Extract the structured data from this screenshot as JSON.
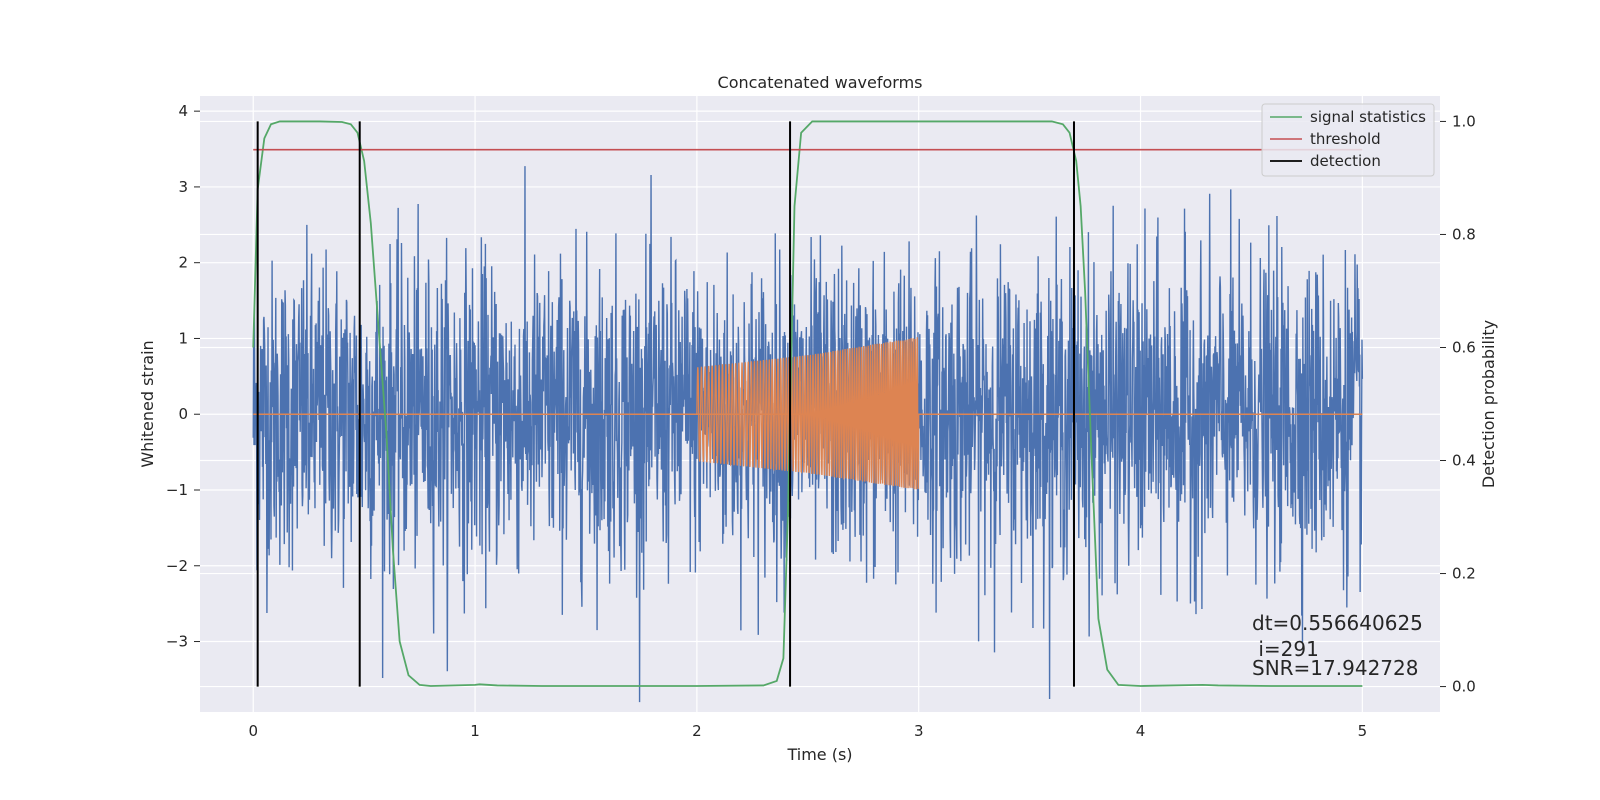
{
  "chart_data": {
    "type": "line",
    "title": "Concatenated waveforms",
    "xlabel": "Time (s)",
    "ylabel": "Whitened strain",
    "y2label": "Detection probability",
    "xlim": [
      -0.24,
      5.35
    ],
    "ylim": [
      -3.93,
      4.2
    ],
    "y2lim": [
      -0.045,
      1.045
    ],
    "xticks": [
      0,
      1,
      2,
      3,
      4,
      5
    ],
    "xtick_labels": [
      "0",
      "1",
      "2",
      "3",
      "4",
      "5"
    ],
    "yticks": [
      -3,
      -2,
      -1,
      0,
      1,
      2,
      3,
      4
    ],
    "ytick_labels": [
      "−3",
      "−2",
      "−1",
      "0",
      "1",
      "2",
      "3",
      "4"
    ],
    "y2ticks": [
      0.0,
      0.2,
      0.4,
      0.6,
      0.8,
      1.0
    ],
    "y2tick_labels": [
      "0.0",
      "0.2",
      "0.4",
      "0.6",
      "0.8",
      "1.0"
    ],
    "grid": true,
    "legend_position": "top-right",
    "colors": {
      "background": "#eaeaf2",
      "grid": "#ffffff",
      "strain": "#4c72b0",
      "template": "#dd8452",
      "signal_statistics": "#55a868",
      "threshold": "#c44e52",
      "detection": "#000000"
    },
    "series": [
      {
        "name": "",
        "axis": "left",
        "kind": "noise",
        "x_range": [
          0,
          5
        ],
        "amplitude_sigma": 1.0,
        "max_abs": 3.8
      },
      {
        "name": "",
        "axis": "left",
        "kind": "chirp",
        "x_range": [
          2,
          3
        ],
        "baseline_x_range": [
          0,
          5
        ],
        "baseline_value": 0,
        "envelope": [
          [
            2.0,
            0.62
          ],
          [
            2.5,
            0.78
          ],
          [
            3.0,
            1.02
          ]
        ],
        "envelope_lower": [
          [
            2.0,
            -0.62
          ],
          [
            2.5,
            -0.78
          ],
          [
            3.0,
            -1.0
          ]
        ]
      },
      {
        "name": "signal statistics",
        "axis": "right",
        "points": [
          [
            0.0,
            0.6
          ],
          [
            0.02,
            0.88
          ],
          [
            0.05,
            0.97
          ],
          [
            0.08,
            0.995
          ],
          [
            0.12,
            1.0
          ],
          [
            0.3,
            1.0
          ],
          [
            0.4,
            0.999
          ],
          [
            0.44,
            0.995
          ],
          [
            0.47,
            0.98
          ],
          [
            0.5,
            0.93
          ],
          [
            0.53,
            0.82
          ],
          [
            0.56,
            0.66
          ],
          [
            0.6,
            0.45
          ],
          [
            0.63,
            0.24
          ],
          [
            0.66,
            0.08
          ],
          [
            0.7,
            0.02
          ],
          [
            0.75,
            0.003
          ],
          [
            0.8,
            0.001
          ],
          [
            1.0,
            0.003
          ],
          [
            1.02,
            0.004
          ],
          [
            1.1,
            0.002
          ],
          [
            1.3,
            0.001
          ],
          [
            2.0,
            0.001
          ],
          [
            2.3,
            0.002
          ],
          [
            2.36,
            0.01
          ],
          [
            2.39,
            0.05
          ],
          [
            2.41,
            0.3
          ],
          [
            2.44,
            0.85
          ],
          [
            2.47,
            0.98
          ],
          [
            2.52,
            1.0
          ],
          [
            3.6,
            1.0
          ],
          [
            3.65,
            0.995
          ],
          [
            3.68,
            0.98
          ],
          [
            3.71,
            0.93
          ],
          [
            3.73,
            0.85
          ],
          [
            3.75,
            0.7
          ],
          [
            3.78,
            0.4
          ],
          [
            3.81,
            0.12
          ],
          [
            3.85,
            0.03
          ],
          [
            3.9,
            0.003
          ],
          [
            4.0,
            0.001
          ],
          [
            4.28,
            0.003
          ],
          [
            4.35,
            0.002
          ],
          [
            4.6,
            0.001
          ],
          [
            5.0,
            0.001
          ]
        ]
      },
      {
        "name": "threshold",
        "axis": "right",
        "points": [
          [
            0,
            0.95
          ],
          [
            5,
            0.95
          ]
        ]
      },
      {
        "name": "detection",
        "axis": "right",
        "vlines": [
          0.02,
          0.48,
          2.42,
          3.7
        ],
        "ymin": 0.0,
        "ymax": 1.0
      }
    ],
    "annotations": [
      "dt=0.556640625",
      " i=291",
      "SNR=17.942728"
    ]
  }
}
